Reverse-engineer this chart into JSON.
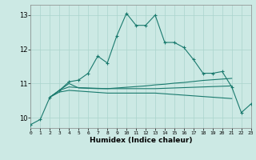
{
  "bg_color": "#cce9e4",
  "grid_color": "#aad4cc",
  "line_color": "#1a7a6e",
  "x_min": 0,
  "x_max": 23,
  "y_min": 9.7,
  "y_max": 13.3,
  "yticks": [
    10,
    11,
    12,
    13
  ],
  "xlabel": "Humidex (Indice chaleur)",
  "series1_x": [
    0,
    1,
    2,
    3,
    4,
    5,
    6,
    7,
    8,
    9,
    10,
    11,
    12,
    13,
    14,
    15,
    16,
    17,
    18,
    19,
    20,
    21,
    22,
    23
  ],
  "series1_y": [
    9.8,
    9.95,
    10.6,
    10.8,
    11.05,
    11.1,
    11.3,
    11.8,
    11.6,
    12.4,
    13.05,
    12.7,
    12.7,
    13.0,
    12.2,
    12.2,
    12.05,
    11.7,
    11.3,
    11.3,
    11.35,
    10.9,
    10.15,
    10.4
  ],
  "series2_x": [
    2,
    3,
    4,
    5,
    6,
    7,
    8,
    9,
    10,
    11,
    12,
    13,
    14,
    15,
    16,
    17,
    18,
    19,
    20,
    21
  ],
  "series2_y": [
    10.6,
    10.8,
    11.0,
    10.87,
    10.86,
    10.85,
    10.85,
    10.87,
    10.89,
    10.91,
    10.93,
    10.96,
    10.98,
    11.01,
    11.03,
    11.06,
    11.09,
    11.11,
    11.13,
    11.15
  ],
  "series3_x": [
    2,
    3,
    4,
    5,
    6,
    7,
    8,
    9,
    10,
    11,
    12,
    13,
    14,
    15,
    16,
    17,
    18,
    19,
    20,
    21
  ],
  "series3_y": [
    10.6,
    10.75,
    10.8,
    10.78,
    10.76,
    10.74,
    10.72,
    10.72,
    10.72,
    10.72,
    10.72,
    10.72,
    10.7,
    10.68,
    10.66,
    10.64,
    10.62,
    10.6,
    10.58,
    10.56
  ],
  "series4_x": [
    2,
    3,
    4,
    5,
    6,
    7,
    8,
    9,
    10,
    11,
    12,
    13,
    14,
    15,
    16,
    17,
    18,
    19,
    20,
    21
  ],
  "series4_y": [
    10.6,
    10.8,
    10.9,
    10.88,
    10.87,
    10.86,
    10.85,
    10.85,
    10.85,
    10.85,
    10.85,
    10.85,
    10.86,
    10.87,
    10.88,
    10.89,
    10.9,
    10.91,
    10.92,
    10.93
  ]
}
